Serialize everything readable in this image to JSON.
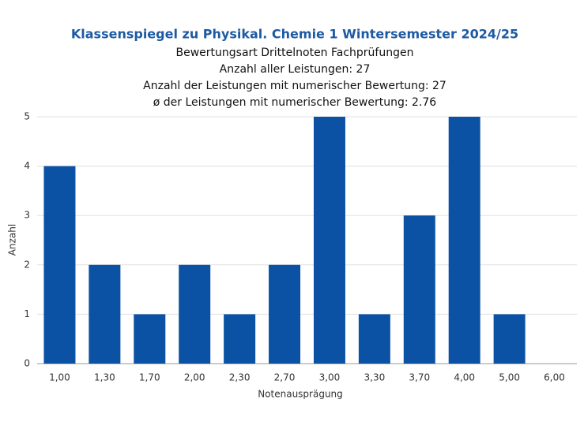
{
  "chart_data": {
    "type": "bar",
    "title": "Klassenspiegel zu Physikal. Chemie 1 Wintersemester 2024/25",
    "subtitle": [
      "Bewertungsart Drittelnoten Fachprüfungen",
      "Anzahl aller Leistungen: 27",
      "Anzahl der Leistungen mit numerischer Bewertung: 27",
      "ø der Leistungen mit numerischer Bewertung: 2.76"
    ],
    "x_label": "Notenausprägung",
    "y_label": "Anzahl",
    "categories": [
      "1,00",
      "1,30",
      "1,70",
      "2,00",
      "2,30",
      "2,70",
      "3,00",
      "3,30",
      "3,70",
      "4,00",
      "5,00",
      "6,00"
    ],
    "values": [
      4,
      2,
      1,
      2,
      1,
      2,
      5,
      1,
      3,
      5,
      1,
      0
    ],
    "color": "#0b52a4",
    "ylim": [
      0,
      5
    ],
    "yticks": [
      0,
      1,
      2,
      3,
      4,
      5
    ],
    "grid": true
  }
}
